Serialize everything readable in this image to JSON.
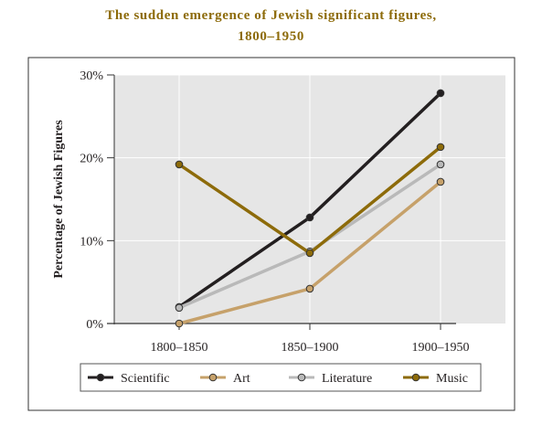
{
  "chart_data": {
    "type": "line",
    "title": "The sudden emergence of Jewish significant figures,",
    "subtitle": "1800–1950",
    "ylabel": "Percentage of Jewish Figures",
    "xlabel": "",
    "categories": [
      "1800–1850",
      "1850–1900",
      "1900–1950"
    ],
    "ylim": [
      0,
      30
    ],
    "yticks": [
      0,
      10,
      20,
      30
    ],
    "ytick_labels": [
      "0%",
      "10%",
      "20%",
      "30%"
    ],
    "grid": true,
    "legend_position": "bottom",
    "series": [
      {
        "name": "Scientific",
        "values": [
          2,
          12.8,
          27.8
        ],
        "color": "#231f20",
        "marker": "#231f20"
      },
      {
        "name": "Art",
        "values": [
          0,
          4.2,
          17.1
        ],
        "color": "#c6a16a",
        "marker": "#c6a16a"
      },
      {
        "name": "Literature",
        "values": [
          1.9,
          8.7,
          19.2
        ],
        "color": "#b9b9b9",
        "marker": "#b9b9b9"
      },
      {
        "name": "Music",
        "values": [
          19.2,
          8.5,
          21.3
        ],
        "color": "#8d6b0a",
        "marker": "#8d6b0a"
      }
    ],
    "colors": {
      "title": "#8d6b0a",
      "plot_background": "#e6e6e6",
      "frame": "#333333",
      "gridline": "#ffffff"
    }
  }
}
